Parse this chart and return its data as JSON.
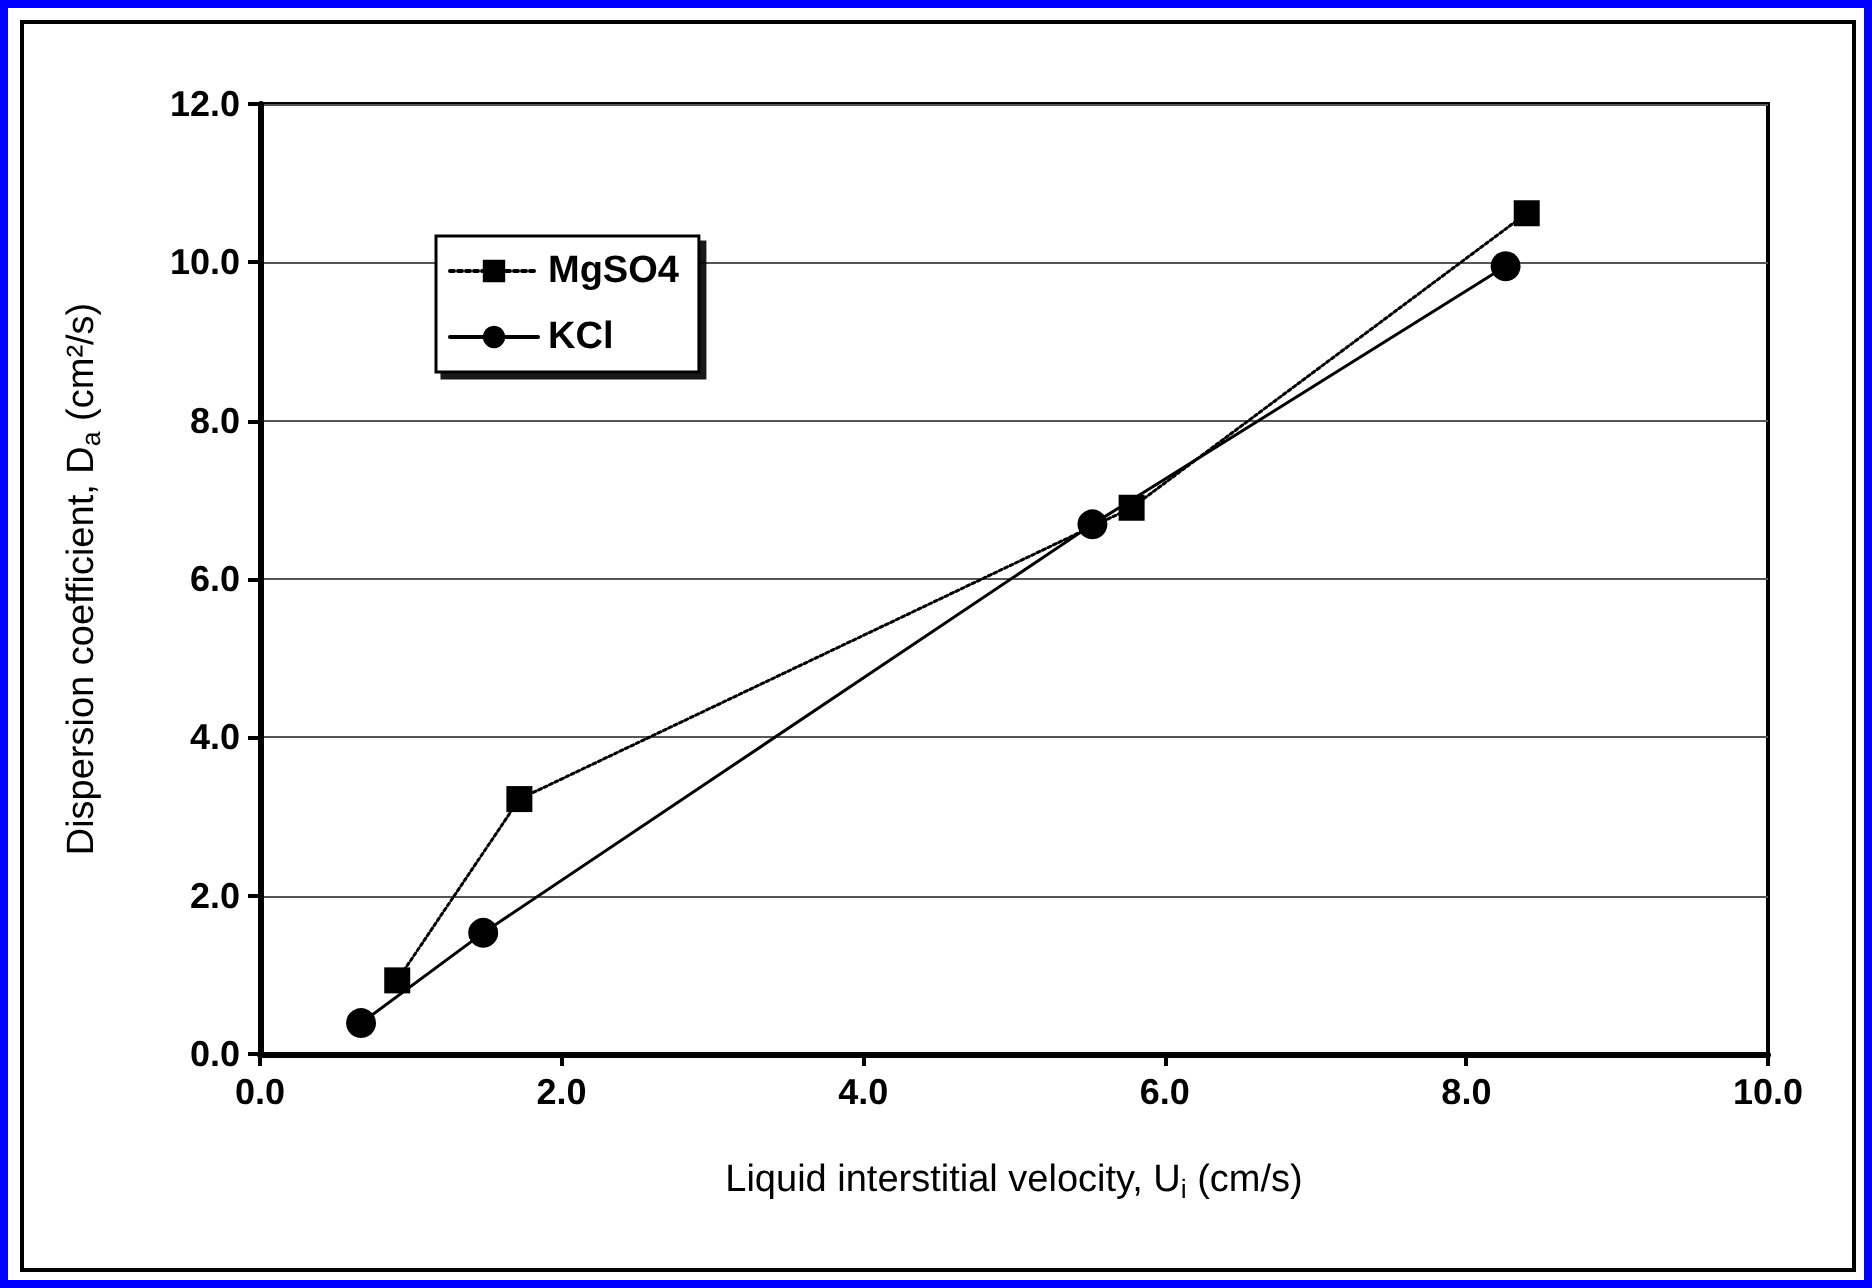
{
  "chart_data": {
    "type": "line",
    "xlabel": "Liquid interstitial velocity, U$_{i}$ (cm/s)",
    "ylabel": "Dispersion coefficient, D$_{a}$ (cm²/s)",
    "xlim": [
      0,
      10
    ],
    "xticks": [
      {
        "value": 0,
        "label": "0.0"
      },
      {
        "value": 2,
        "label": "2.0"
      },
      {
        "value": 4,
        "label": "4.0"
      },
      {
        "value": 6,
        "label": "6.0"
      },
      {
        "value": 8,
        "label": "8.0"
      },
      {
        "value": 10,
        "label": "10.0"
      }
    ],
    "ylim": [
      0,
      12
    ],
    "yticks": [
      {
        "value": 0,
        "label": "0.0"
      },
      {
        "value": 2,
        "label": "2.0"
      },
      {
        "value": 4,
        "label": "4.0"
      },
      {
        "value": 6,
        "label": "6.0"
      },
      {
        "value": 8,
        "label": "8.0"
      },
      {
        "value": 10,
        "label": "10.0"
      },
      {
        "value": 12,
        "label": "12.0"
      }
    ],
    "grid": "y",
    "legend": "top left",
    "series": [
      {
        "name": "MgSO4",
        "color": "#000000",
        "marker": "square",
        "line_style": "dotted",
        "x": [
          0.91,
          1.72,
          5.78,
          8.4
        ],
        "values": [
          0.93,
          3.22,
          6.9,
          10.62
        ]
      },
      {
        "name": "KCl",
        "color": "#000000",
        "marker": "circle",
        "line_style": "solid",
        "x": [
          0.67,
          1.48,
          5.52,
          8.26
        ],
        "values": [
          0.39,
          1.53,
          6.69,
          9.95
        ]
      }
    ]
  }
}
